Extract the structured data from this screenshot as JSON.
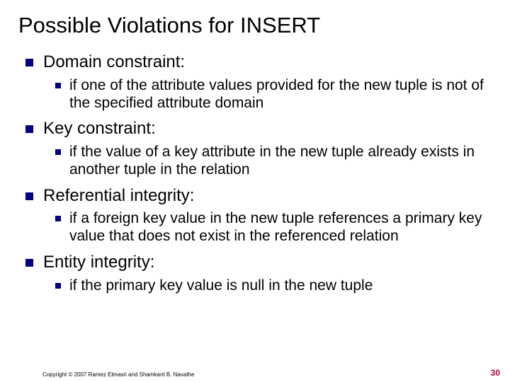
{
  "title": "Possible Violations for INSERT",
  "items": [
    {
      "label": "Domain constraint:",
      "sub": "if one of the attribute values provided for the new tuple is not of the specified attribute domain"
    },
    {
      "label": "Key constraint:",
      "sub": "if the value of a key attribute in the new tuple already exists in another tuple in the relation"
    },
    {
      "label": "Referential integrity:",
      "sub": "if a foreign key value in the new tuple references a primary key value that does not exist in the referenced relation"
    },
    {
      "label": "Entity integrity:",
      "sub": "if the primary key value is null in the new tuple"
    }
  ],
  "footer": "Copyright © 2007 Ramez Elmasri and Shamkant B. Navathe",
  "page": "30",
  "colors": {
    "bullet": "#000080",
    "pagenum": "#b30838",
    "text": "#000000",
    "background": "#ffffff"
  }
}
